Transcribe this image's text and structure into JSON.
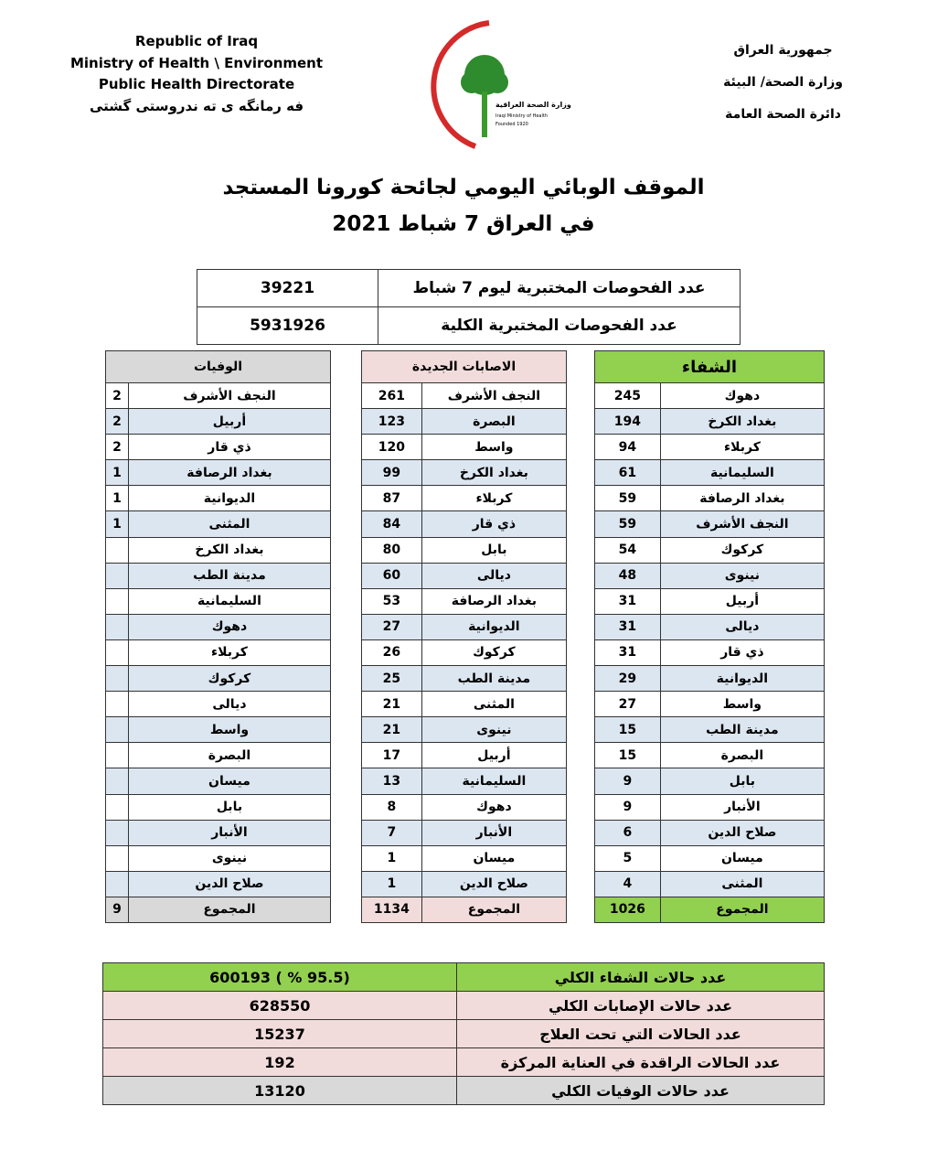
{
  "header": {
    "en": [
      "Republic of Iraq",
      "Ministry of Health \\ Environment",
      "Public Health Directorate",
      "فه رمانگه ی ته ندروستی گشتی"
    ],
    "ar": [
      "جمهورية العراق",
      "وزارة الصحة/ البيئة",
      "دائرة الصحة العامة"
    ],
    "logo_text": [
      "وزارة الصحة العراقية",
      "Iraqi Ministry of Health",
      "Founded 1920"
    ]
  },
  "title": {
    "line1": "الموقف الوبائي اليومي لجائحة كورونا المستجد",
    "line2": "في العراق  7  شباط 2021"
  },
  "tests": [
    {
      "label": "عدد الفحوصات المختبرية  ليوم 7 شباط",
      "value": "39221"
    },
    {
      "label": "عدد الفحوصات المختبرية الكلية",
      "value": "5931926"
    }
  ],
  "colors": {
    "recovery": "#92d050",
    "cases": "#f2dcdb",
    "deaths": "#d9d9d9",
    "row_alt": "#dce6f1"
  },
  "tables": [
    {
      "key": "recovery",
      "title": "الشفاء",
      "total_label": "المجموع",
      "total": "1026",
      "rows": [
        [
          "دهوك",
          "245"
        ],
        [
          "بغداد الكرخ",
          "194"
        ],
        [
          "كربلاء",
          "94"
        ],
        [
          "السليمانية",
          "61"
        ],
        [
          "بغداد الرصافة",
          "59"
        ],
        [
          "النجف الأشرف",
          "59"
        ],
        [
          "كركوك",
          "54"
        ],
        [
          "نينوى",
          "48"
        ],
        [
          "أربيل",
          "31"
        ],
        [
          "ديالى",
          "31"
        ],
        [
          "ذي قار",
          "31"
        ],
        [
          "الديوانية",
          "29"
        ],
        [
          "واسط",
          "27"
        ],
        [
          "مدينة الطب",
          "15"
        ],
        [
          "البصرة",
          "15"
        ],
        [
          "بابل",
          "9"
        ],
        [
          "الأنبار",
          "9"
        ],
        [
          "صلاح الدين",
          "6"
        ],
        [
          "ميسان",
          "5"
        ],
        [
          "المثنى",
          "4"
        ]
      ]
    },
    {
      "key": "cases",
      "title": "الاصابات الجديدة",
      "total_label": "المجموع",
      "total": "1134",
      "rows": [
        [
          "النجف الأشرف",
          "261"
        ],
        [
          "البصرة",
          "123"
        ],
        [
          "واسط",
          "120"
        ],
        [
          "بغداد الكرخ",
          "99"
        ],
        [
          "كربلاء",
          "87"
        ],
        [
          "ذي قار",
          "84"
        ],
        [
          "بابل",
          "80"
        ],
        [
          "ديالى",
          "60"
        ],
        [
          "بغداد الرصافة",
          "53"
        ],
        [
          "الديوانية",
          "27"
        ],
        [
          "كركوك",
          "26"
        ],
        [
          "مدينة الطب",
          "25"
        ],
        [
          "المثنى",
          "21"
        ],
        [
          "نينوى",
          "21"
        ],
        [
          "أربيل",
          "17"
        ],
        [
          "السليمانية",
          "13"
        ],
        [
          "دهوك",
          "8"
        ],
        [
          "الأنبار",
          "7"
        ],
        [
          "ميسان",
          "1"
        ],
        [
          "صلاح الدين",
          "1"
        ]
      ]
    },
    {
      "key": "deaths",
      "title": "الوفيات",
      "total_label": "المجموع",
      "total": "9",
      "rows": [
        [
          "النجف الأشرف",
          "2"
        ],
        [
          "أربيل",
          "2"
        ],
        [
          "ذي قار",
          "2"
        ],
        [
          "بغداد الرصافة",
          "1"
        ],
        [
          "الديوانية",
          "1"
        ],
        [
          "المثنى",
          "1"
        ],
        [
          "بغداد الكرخ",
          ""
        ],
        [
          "مدينة الطب",
          ""
        ],
        [
          "السليمانية",
          ""
        ],
        [
          "دهوك",
          ""
        ],
        [
          "كربلاء",
          ""
        ],
        [
          "كركوك",
          ""
        ],
        [
          "ديالى",
          ""
        ],
        [
          "واسط",
          ""
        ],
        [
          "البصرة",
          ""
        ],
        [
          "ميسان",
          ""
        ],
        [
          "بابل",
          ""
        ],
        [
          "الأنبار",
          ""
        ],
        [
          "نينوى",
          ""
        ],
        [
          "صلاح الدين",
          ""
        ]
      ]
    }
  ],
  "summary": [
    {
      "label": "عدد حالات الشفاء الكلي",
      "value": "(95.5 % )   600193",
      "color": "#92d050"
    },
    {
      "label": "عدد حالات الإصابات الكلي",
      "value": "628550",
      "color": "#f2dcdb"
    },
    {
      "label": "عدد الحالات التي تحت العلاج",
      "value": "15237",
      "color": "#f2dcdb"
    },
    {
      "label": "عدد الحالات الراقدة في العناية المركزة",
      "value": "192",
      "color": "#f2dcdb"
    },
    {
      "label": "عدد حالات الوفيات الكلي",
      "value": "13120",
      "color": "#d9d9d9"
    }
  ]
}
